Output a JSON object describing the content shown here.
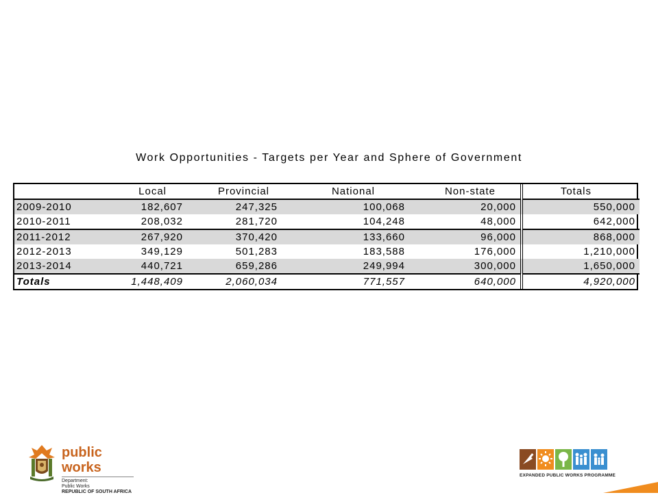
{
  "slide": {
    "title": "Work Opportunities - Targets per Year and Sphere of Government"
  },
  "table": {
    "headers": [
      "",
      "Local",
      "Provincial",
      "National",
      "Non-state",
      "Totals"
    ],
    "rows": [
      {
        "year": "2009-2010",
        "local": "182,607",
        "provincial": "247,325",
        "national": "100,068",
        "nonstate": "20,000",
        "total": "550,000"
      },
      {
        "year": "2010-2011",
        "local": "208,032",
        "provincial": "281,720",
        "national": "104,248",
        "nonstate": "48,000",
        "total": "642,000"
      },
      {
        "year": "2011-2012",
        "local": "267,920",
        "provincial": "370,420",
        "national": "133,660",
        "nonstate": "96,000",
        "total": "868,000"
      },
      {
        "year": "2012-2013",
        "local": "349,129",
        "provincial": "501,283",
        "national": "183,588",
        "nonstate": "176,000",
        "total": "1,210,000"
      },
      {
        "year": "2013-2014",
        "local": "440,721",
        "provincial": "659,286",
        "national": "249,994",
        "nonstate": "300,000",
        "total": "1,650,000"
      }
    ],
    "totals": {
      "label": "Totals",
      "local": "1,448,409",
      "provincial": "2,060,034",
      "national": "771,557",
      "nonstate": "640,000",
      "total": "4,920,000"
    }
  },
  "footer": {
    "left_logo": {
      "brand": "public works",
      "line1": "Department:",
      "line2": "Public Works",
      "line3": "REPUBLIC OF SOUTH AFRICA"
    },
    "right_logo": {
      "text": "EXPANDED PUBLIC WORKS PROGRAMME"
    }
  },
  "colors": {
    "row_shade": "#d9d9d9",
    "brand_orange": "#c8641e",
    "tile_brown": "#8a4b22",
    "tile_orange": "#f08c1e",
    "tile_green": "#7ab648",
    "tile_blue": "#3a8fd0"
  }
}
